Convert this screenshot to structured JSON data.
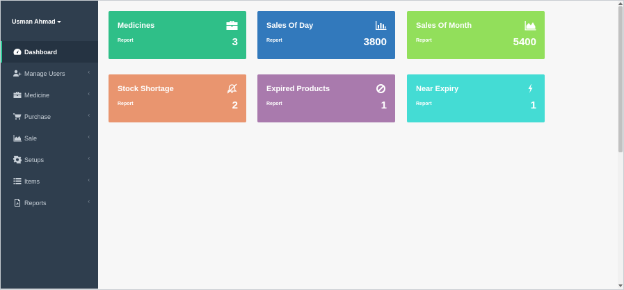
{
  "user": {
    "name": "Usman Ahmad"
  },
  "sidebar": {
    "items": [
      {
        "label": "Dashboard",
        "icon": "dashboard-icon",
        "active": true
      },
      {
        "label": "Manage Users",
        "icon": "users-icon"
      },
      {
        "label": "Medicine",
        "icon": "briefcase-icon"
      },
      {
        "label": "Purchase",
        "icon": "cart-icon"
      },
      {
        "label": "Sale",
        "icon": "area-chart-icon"
      },
      {
        "label": "Setups",
        "icon": "gear-icon"
      },
      {
        "label": "Items",
        "icon": "list-icon"
      },
      {
        "label": "Reports",
        "icon": "pdf-file-icon"
      }
    ]
  },
  "cards": [
    {
      "title": "Medicines",
      "sub": "Report",
      "value": "3",
      "color": "#2fbf88",
      "icon": "briefcase-icon"
    },
    {
      "title": "Sales Of Day",
      "sub": "Report",
      "value": "3800",
      "color": "#3279bc",
      "icon": "bar-chart-icon"
    },
    {
      "title": "Sales Of Month",
      "sub": "Report",
      "value": "5400",
      "color": "#92df5b",
      "icon": "area-chart-icon"
    },
    {
      "title": "Stock Shortage",
      "sub": "Report",
      "value": "2",
      "color": "#e9956f",
      "icon": "bell-slash-icon"
    },
    {
      "title": "Expired Products",
      "sub": "Report",
      "value": "1",
      "color": "#a97aad",
      "icon": "ban-icon"
    },
    {
      "title": "Near Expiry",
      "sub": "Report",
      "value": "1",
      "color": "#44dcd4",
      "icon": "bolt-icon"
    }
  ],
  "theme": {
    "sidebar_bg": "#2f3e4e",
    "active_accent": "#2ecc9a"
  }
}
